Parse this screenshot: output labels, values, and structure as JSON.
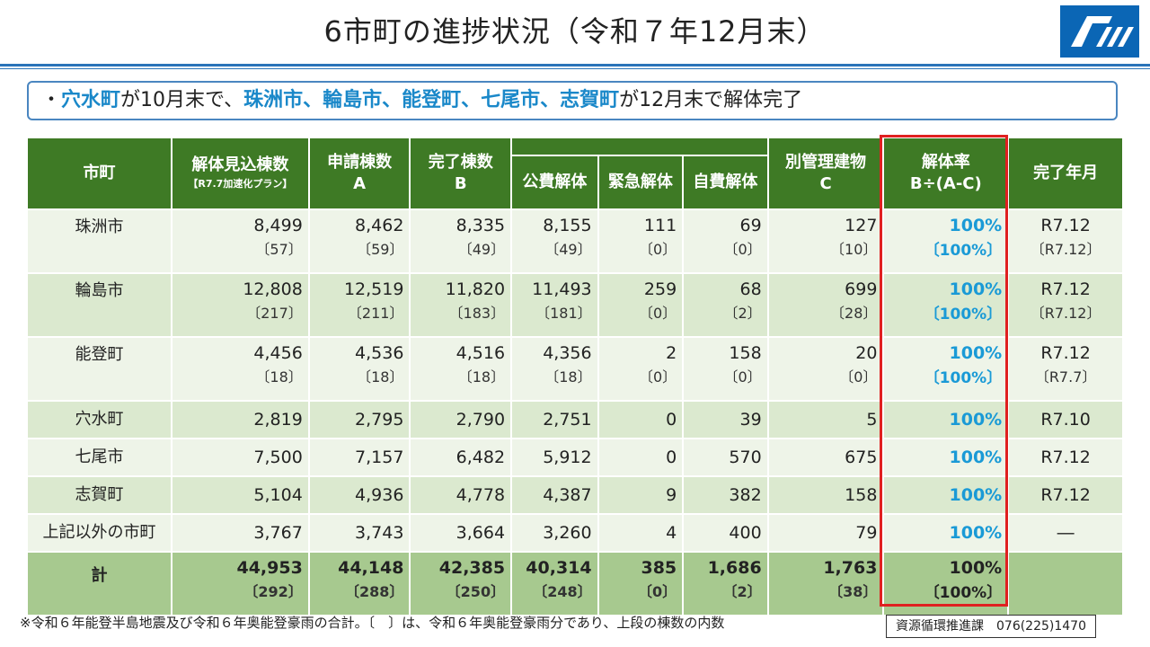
{
  "title": "6市町の進捗状況（令和７年12月末）",
  "summary": {
    "bullet": "・",
    "town1": "穴水町",
    "text1": "が10月末で、",
    "towns2": "珠洲市、輪島市、能登町、七尾市、志賀町",
    "text2": "が12月末で解体完了"
  },
  "headers": {
    "municipality": "市町",
    "expected_line1": "解体見込棟数",
    "expected_line2": "【R7.7加速化プラン】",
    "applied_line1": "申請棟数",
    "applied_line2": "A",
    "completed_line1": "完了棟数",
    "completed_line2": "B",
    "public": "公費解体",
    "emergency": "緊急解体",
    "self": "自費解体",
    "separate_line1": "別管理建物",
    "separate_line2": "C",
    "rate_line1": "解体率",
    "rate_line2": "B÷(A-C)",
    "completion": "完了年月"
  },
  "rows": [
    {
      "name": "珠洲市",
      "expected": "8,499",
      "expected_sub": "〔57〕",
      "applied": "8,462",
      "applied_sub": "〔59〕",
      "completed": "8,335",
      "completed_sub": "〔49〕",
      "public": "8,155",
      "public_sub": "〔49〕",
      "emergency": "111",
      "emergency_sub": "〔0〕",
      "self": "69",
      "self_sub": "〔0〕",
      "separate": "127",
      "separate_sub": "〔10〕",
      "rate": "100%",
      "rate_sub": "〔100%〕",
      "completion": "R7.12",
      "completion_sub": "〔R7.12〕"
    },
    {
      "name": "輪島市",
      "expected": "12,808",
      "expected_sub": "〔217〕",
      "applied": "12,519",
      "applied_sub": "〔211〕",
      "completed": "11,820",
      "completed_sub": "〔183〕",
      "public": "11,493",
      "public_sub": "〔181〕",
      "emergency": "259",
      "emergency_sub": "〔0〕",
      "self": "68",
      "self_sub": "〔2〕",
      "separate": "699",
      "separate_sub": "〔28〕",
      "rate": "100%",
      "rate_sub": "〔100%〕",
      "completion": "R7.12",
      "completion_sub": "〔R7.12〕"
    },
    {
      "name": "能登町",
      "expected": "4,456",
      "expected_sub": "〔18〕",
      "applied": "4,536",
      "applied_sub": "〔18〕",
      "completed": "4,516",
      "completed_sub": "〔18〕",
      "public": "4,356",
      "public_sub": "〔18〕",
      "emergency": "2",
      "emergency_sub": "〔0〕",
      "self": "158",
      "self_sub": "〔0〕",
      "separate": "20",
      "separate_sub": "〔0〕",
      "rate": "100%",
      "rate_sub": "〔100%〕",
      "completion": "R7.12",
      "completion_sub": "〔R7.7〕"
    },
    {
      "name": "穴水町",
      "expected": "2,819",
      "applied": "2,795",
      "completed": "2,790",
      "public": "2,751",
      "emergency": "0",
      "self": "39",
      "separate": "5",
      "rate": "100%",
      "completion": "R7.10"
    },
    {
      "name": "七尾市",
      "expected": "7,500",
      "applied": "7,157",
      "completed": "6,482",
      "public": "5,912",
      "emergency": "0",
      "self": "570",
      "separate": "675",
      "rate": "100%",
      "completion": "R7.12"
    },
    {
      "name": "志賀町",
      "expected": "5,104",
      "applied": "4,936",
      "completed": "4,778",
      "public": "4,387",
      "emergency": "9",
      "self": "382",
      "separate": "158",
      "rate": "100%",
      "completion": "R7.12"
    },
    {
      "name": "上記以外の市町",
      "expected": "3,767",
      "applied": "3,743",
      "completed": "3,664",
      "public": "3,260",
      "emergency": "4",
      "self": "400",
      "separate": "79",
      "rate": "100%",
      "completion": "―"
    }
  ],
  "total": {
    "name": "計",
    "expected": "44,953",
    "expected_sub": "〔292〕",
    "applied": "44,148",
    "applied_sub": "〔288〕",
    "completed": "42,385",
    "completed_sub": "〔250〕",
    "public": "40,314",
    "public_sub": "〔248〕",
    "emergency": "385",
    "emergency_sub": "〔0〕",
    "self": "1,686",
    "self_sub": "〔2〕",
    "separate": "1,763",
    "separate_sub": "〔38〕",
    "rate": "100%",
    "rate_sub": "〔100%〕"
  },
  "note": "※令和６年能登半島地震及び令和６年奥能登豪雨の合計。〔　〕は、令和６年奥能登豪雨分であり、上段の棟数の内数",
  "contact": "資源循環推進課　076(225)1470",
  "logo_icon": "ishikawa-prefecture-emblem-icon",
  "colors": {
    "header_green": "#3e7a25",
    "highlight_blue": "#1a88c9",
    "frame_red": "#e02020"
  }
}
